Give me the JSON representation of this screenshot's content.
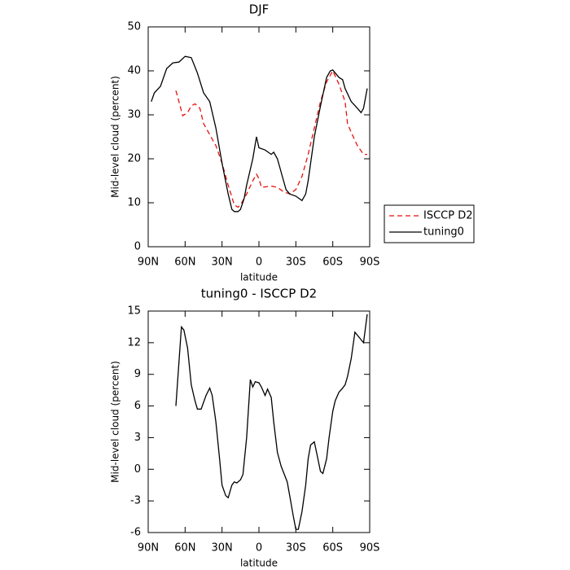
{
  "chart_data": [
    {
      "type": "line",
      "title": "DJF",
      "xlabel": "latitude",
      "ylabel": "Mid-level cloud (percent)",
      "xlim": [
        90,
        -90
      ],
      "xticks": [
        {
          "value": 90,
          "label": "90N"
        },
        {
          "value": 60,
          "label": "60N"
        },
        {
          "value": 30,
          "label": "30N"
        },
        0,
        {
          "value": -30,
          "label": "30S"
        },
        {
          "value": -60,
          "label": "60S"
        },
        {
          "value": -90,
          "label": "90S"
        }
      ],
      "ylim": [
        0,
        50
      ],
      "yticks": [
        0,
        10,
        20,
        30,
        40,
        50
      ],
      "legend": "right",
      "series": [
        {
          "name": "ISCCP D2",
          "color": "#e8120c",
          "linestyle": "dashed",
          "x": [
            67.5,
            65,
            62,
            58,
            55,
            52,
            48,
            45,
            40,
            35,
            30,
            25,
            20,
            17,
            15,
            10,
            5,
            2,
            0,
            -2,
            -10,
            -15,
            -20,
            -25,
            -30,
            -35,
            -40,
            -45,
            -50,
            -55,
            -60,
            -65,
            -70,
            -72,
            -75,
            -80,
            -85,
            -88
          ],
          "values": [
            35.5,
            33,
            29.8,
            30.5,
            32,
            32.5,
            31.5,
            28,
            25.5,
            23,
            19,
            14,
            9.5,
            9,
            9.5,
            12,
            15,
            16.5,
            15.5,
            13.5,
            13.8,
            13.5,
            12.5,
            12,
            13,
            16,
            21,
            27,
            33,
            37.5,
            40,
            37,
            33,
            28,
            26,
            23,
            21,
            21
          ]
        },
        {
          "name": "tuning0",
          "color": "#000000",
          "linestyle": "solid",
          "x": [
            87.5,
            85,
            80,
            75,
            70,
            65,
            60,
            55,
            50,
            45,
            40,
            35,
            30,
            25,
            22,
            20,
            17,
            15,
            12,
            10,
            5,
            2,
            0,
            -5,
            -10,
            -12,
            -15,
            -20,
            -22,
            -25,
            -30,
            -35,
            -38,
            -40,
            -45,
            -50,
            -55,
            -58,
            -60,
            -65,
            -68,
            -70,
            -75,
            -80,
            -83,
            -85,
            -88
          ],
          "values": [
            33,
            35,
            36.5,
            40.5,
            41.8,
            42,
            43.3,
            43,
            39.5,
            35,
            33,
            27,
            19,
            12,
            8.5,
            8,
            8,
            8.5,
            11,
            14,
            20,
            25,
            22.5,
            22,
            21,
            21.5,
            20,
            15,
            13,
            12,
            11.5,
            10.5,
            12,
            15,
            25,
            32,
            38.5,
            40,
            40.2,
            38.5,
            38,
            36,
            33,
            31.5,
            30.5,
            31.5,
            36
          ]
        }
      ]
    },
    {
      "type": "line",
      "title": "tuning0 - ISCCP D2",
      "xlabel": "latitude",
      "ylabel": "Mid-level cloud (percent)",
      "xlim": [
        90,
        -90
      ],
      "xticks": [
        {
          "value": 90,
          "label": "90N"
        },
        {
          "value": 60,
          "label": "60N"
        },
        {
          "value": 30,
          "label": "30N"
        },
        0,
        {
          "value": -30,
          "label": "30S"
        },
        {
          "value": -60,
          "label": "60S"
        },
        {
          "value": -90,
          "label": "90S"
        }
      ],
      "ylim": [
        -6,
        15
      ],
      "yticks": [
        -6,
        -3,
        0,
        3,
        6,
        9,
        12,
        15
      ],
      "series": [
        {
          "color": "#000000",
          "linestyle": "solid",
          "x": [
            67.5,
            63,
            61,
            58,
            55,
            52,
            50,
            47,
            43,
            40,
            38,
            35,
            32,
            30,
            27,
            25,
            22,
            20,
            18,
            15,
            13,
            10,
            7,
            5,
            3,
            0,
            -2,
            -5,
            -7,
            -10,
            -12,
            -15,
            -18,
            -20,
            -23,
            -25,
            -28,
            -30,
            -32,
            -35,
            -38,
            -40,
            -42,
            -45,
            -47,
            -50,
            -52,
            -55,
            -57,
            -60,
            -62,
            -65,
            -68,
            -70,
            -72,
            -75,
            -78,
            -85,
            -88
          ],
          "values": [
            6,
            13.5,
            13.2,
            11.5,
            8,
            6.5,
            5.7,
            5.7,
            7,
            7.7,
            7,
            4.5,
            1,
            -1.5,
            -2.5,
            -2.7,
            -1.5,
            -1.2,
            -1.3,
            -1,
            -0.5,
            3,
            8.5,
            7.8,
            8.3,
            8.2,
            7.8,
            7,
            7.6,
            6.8,
            4.5,
            1.6,
            0.3,
            -0.3,
            -1.2,
            -2.5,
            -4.5,
            -5.7,
            -5.7,
            -4,
            -1.5,
            1,
            2.3,
            2.6,
            1.5,
            -0.2,
            -0.4,
            1,
            3,
            5.5,
            6.5,
            7.3,
            7.7,
            8,
            8.8,
            10.5,
            13,
            12,
            14.7
          ]
        }
      ]
    }
  ]
}
